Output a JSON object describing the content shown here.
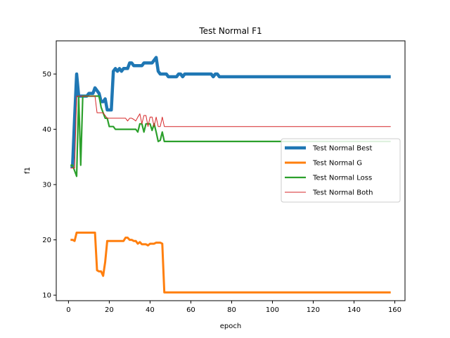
{
  "chart_data": {
    "type": "line",
    "title": "Test Normal F1",
    "xlabel": "epoch",
    "ylabel": "f1",
    "xlim": [
      -6,
      165
    ],
    "ylim": [
      9,
      56
    ],
    "xticks": [
      0,
      20,
      40,
      60,
      80,
      100,
      120,
      140,
      160
    ],
    "yticks": [
      10,
      20,
      30,
      40,
      50
    ],
    "grid": false,
    "legend_position": "center-right",
    "series": [
      {
        "name": "Test Normal Best",
        "color": "#1f77b4",
        "points": [
          [
            1,
            33.3
          ],
          [
            2,
            33.3
          ],
          [
            3,
            42
          ],
          [
            4,
            50
          ],
          [
            5,
            46
          ],
          [
            6,
            46
          ],
          [
            7,
            46
          ],
          [
            8,
            46
          ],
          [
            9,
            46
          ],
          [
            10,
            46.5
          ],
          [
            11,
            46.5
          ],
          [
            12,
            46.5
          ],
          [
            13,
            47.5
          ],
          [
            14,
            47
          ],
          [
            15,
            46.5
          ],
          [
            16,
            45
          ],
          [
            17,
            45
          ],
          [
            18,
            45.5
          ],
          [
            19,
            43.5
          ],
          [
            20,
            43.5
          ],
          [
            21,
            43.5
          ],
          [
            22,
            50.5
          ],
          [
            23,
            51
          ],
          [
            24,
            50.5
          ],
          [
            25,
            51
          ],
          [
            26,
            50.5
          ],
          [
            27,
            51
          ],
          [
            28,
            51
          ],
          [
            29,
            51
          ],
          [
            30,
            52
          ],
          [
            31,
            52
          ],
          [
            32,
            51.5
          ],
          [
            33,
            51.5
          ],
          [
            34,
            51.5
          ],
          [
            35,
            51.5
          ],
          [
            36,
            51.5
          ],
          [
            37,
            52
          ],
          [
            38,
            52
          ],
          [
            39,
            52
          ],
          [
            40,
            52
          ],
          [
            41,
            52
          ],
          [
            42,
            52.5
          ],
          [
            43,
            53
          ],
          [
            44,
            50.5
          ],
          [
            45,
            50
          ],
          [
            46,
            50
          ],
          [
            47,
            50
          ],
          [
            48,
            50
          ],
          [
            49,
            49.5
          ],
          [
            50,
            49.5
          ],
          [
            51,
            49.5
          ],
          [
            52,
            49.5
          ],
          [
            53,
            49.5
          ],
          [
            54,
            50
          ],
          [
            55,
            50
          ],
          [
            56,
            49.5
          ],
          [
            57,
            50
          ],
          [
            58,
            50
          ],
          [
            60,
            50
          ],
          [
            62,
            50
          ],
          [
            64,
            50
          ],
          [
            66,
            50
          ],
          [
            68,
            50
          ],
          [
            70,
            50
          ],
          [
            71,
            49.5
          ],
          [
            72,
            50
          ],
          [
            73,
            50
          ],
          [
            74,
            49.5
          ],
          [
            80,
            49.5
          ],
          [
            100,
            49.5
          ],
          [
            120,
            49.5
          ],
          [
            140,
            49.5
          ],
          [
            158,
            49.5
          ]
        ]
      },
      {
        "name": "Test Normal G",
        "color": "#ff7f0e",
        "points": [
          [
            1,
            20
          ],
          [
            2,
            20
          ],
          [
            3,
            19.8
          ],
          [
            4,
            21.3
          ],
          [
            5,
            21.3
          ],
          [
            6,
            21.3
          ],
          [
            7,
            21.3
          ],
          [
            8,
            21.3
          ],
          [
            9,
            21.3
          ],
          [
            10,
            21.3
          ],
          [
            11,
            21.3
          ],
          [
            12,
            21.3
          ],
          [
            13,
            21.3
          ],
          [
            14,
            14.5
          ],
          [
            15,
            14.3
          ],
          [
            16,
            14.3
          ],
          [
            17,
            13.5
          ],
          [
            18,
            16
          ],
          [
            19,
            19.8
          ],
          [
            20,
            19.8
          ],
          [
            21,
            19.8
          ],
          [
            22,
            19.8
          ],
          [
            23,
            19.8
          ],
          [
            24,
            19.8
          ],
          [
            25,
            19.8
          ],
          [
            26,
            19.8
          ],
          [
            27,
            19.8
          ],
          [
            28,
            20.4
          ],
          [
            29,
            20.4
          ],
          [
            30,
            20
          ],
          [
            31,
            20
          ],
          [
            32,
            19.8
          ],
          [
            33,
            19.8
          ],
          [
            34,
            19.3
          ],
          [
            35,
            19.6
          ],
          [
            36,
            19.2
          ],
          [
            37,
            19.2
          ],
          [
            38,
            19.2
          ],
          [
            39,
            19
          ],
          [
            40,
            19.3
          ],
          [
            41,
            19.3
          ],
          [
            42,
            19.3
          ],
          [
            43,
            19.5
          ],
          [
            44,
            19.5
          ],
          [
            45,
            19.5
          ],
          [
            46,
            19.3
          ],
          [
            47,
            10.5
          ],
          [
            48,
            10.5
          ],
          [
            60,
            10.5
          ],
          [
            80,
            10.5
          ],
          [
            100,
            10.5
          ],
          [
            120,
            10.5
          ],
          [
            140,
            10.5
          ],
          [
            158,
            10.5
          ]
        ]
      },
      {
        "name": "Test Normal Loss",
        "color": "#2ca02c",
        "points": [
          [
            1,
            33.5
          ],
          [
            2,
            33.5
          ],
          [
            3,
            32.5
          ],
          [
            4,
            31.5
          ],
          [
            5,
            46
          ],
          [
            6,
            33.5
          ],
          [
            7,
            46
          ],
          [
            8,
            46
          ],
          [
            9,
            46
          ],
          [
            10,
            46
          ],
          [
            11,
            46
          ],
          [
            12,
            46
          ],
          [
            13,
            46
          ],
          [
            14,
            46
          ],
          [
            15,
            46
          ],
          [
            16,
            44
          ],
          [
            17,
            43
          ],
          [
            18,
            42
          ],
          [
            19,
            42
          ],
          [
            20,
            40.5
          ],
          [
            21,
            40.5
          ],
          [
            22,
            40.5
          ],
          [
            23,
            40
          ],
          [
            24,
            40
          ],
          [
            25,
            40
          ],
          [
            26,
            40
          ],
          [
            27,
            40
          ],
          [
            28,
            40
          ],
          [
            29,
            40
          ],
          [
            30,
            40
          ],
          [
            31,
            40
          ],
          [
            32,
            40
          ],
          [
            33,
            40
          ],
          [
            34,
            39.5
          ],
          [
            35,
            41
          ],
          [
            36,
            41
          ],
          [
            37,
            39.5
          ],
          [
            38,
            41
          ],
          [
            39,
            41
          ],
          [
            40,
            41
          ],
          [
            41,
            39.8
          ],
          [
            42,
            41
          ],
          [
            43,
            39.5
          ],
          [
            44,
            37.8
          ],
          [
            45,
            38
          ],
          [
            46,
            39.5
          ],
          [
            47,
            37.8
          ],
          [
            48,
            37.8
          ],
          [
            60,
            37.8
          ],
          [
            80,
            37.8
          ],
          [
            100,
            37.8
          ],
          [
            120,
            37.8
          ],
          [
            140,
            37.8
          ],
          [
            158,
            37.8
          ]
        ]
      },
      {
        "name": "Test Normal Both",
        "color": "#d62728",
        "points": [
          [
            1,
            33
          ],
          [
            2,
            33
          ],
          [
            3,
            33
          ],
          [
            4,
            46
          ],
          [
            5,
            46
          ],
          [
            6,
            46
          ],
          [
            7,
            46
          ],
          [
            8,
            46
          ],
          [
            9,
            46
          ],
          [
            10,
            46
          ],
          [
            11,
            46
          ],
          [
            12,
            46
          ],
          [
            13,
            46
          ],
          [
            14,
            43
          ],
          [
            15,
            43
          ],
          [
            16,
            43
          ],
          [
            17,
            43
          ],
          [
            18,
            42.5
          ],
          [
            19,
            42
          ],
          [
            20,
            42
          ],
          [
            21,
            42
          ],
          [
            22,
            42
          ],
          [
            23,
            42
          ],
          [
            24,
            42
          ],
          [
            25,
            42
          ],
          [
            26,
            42
          ],
          [
            27,
            42
          ],
          [
            28,
            42
          ],
          [
            29,
            41.5
          ],
          [
            30,
            42
          ],
          [
            31,
            42
          ],
          [
            32,
            41.8
          ],
          [
            33,
            41.5
          ],
          [
            34,
            42.2
          ],
          [
            35,
            42.8
          ],
          [
            36,
            41
          ],
          [
            37,
            42.5
          ],
          [
            38,
            42.5
          ],
          [
            39,
            40.5
          ],
          [
            40,
            42.2
          ],
          [
            41,
            42.2
          ],
          [
            42,
            40.5
          ],
          [
            43,
            42.2
          ],
          [
            44,
            40.5
          ],
          [
            45,
            40.5
          ],
          [
            46,
            42.2
          ],
          [
            47,
            40.5
          ],
          [
            48,
            40.5
          ],
          [
            60,
            40.5
          ],
          [
            80,
            40.5
          ],
          [
            100,
            40.5
          ],
          [
            120,
            40.5
          ],
          [
            140,
            40.5
          ],
          [
            158,
            40.5
          ]
        ]
      }
    ]
  }
}
